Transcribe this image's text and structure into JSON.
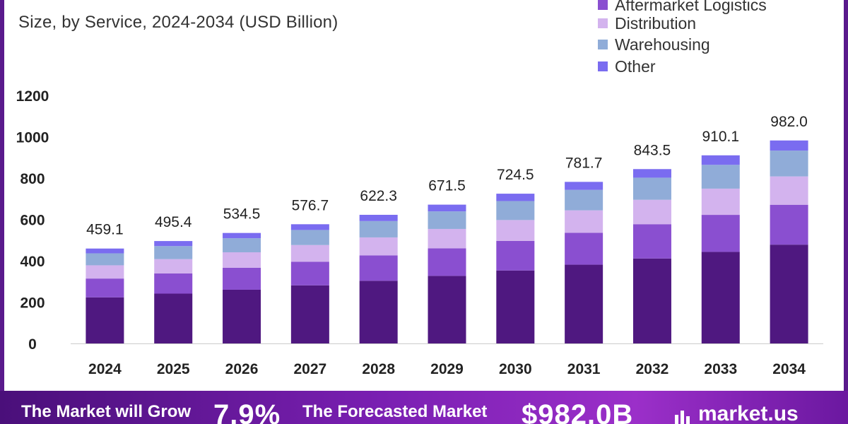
{
  "header": {
    "title": "",
    "subtitle": "Size, by Service, 2024-2034 (USD Billion)"
  },
  "legend": [
    {
      "label": "Aftermarket Logistics",
      "color": "#8a4fd0"
    },
    {
      "label": "Distribution",
      "color": "#d3b3ee"
    },
    {
      "label": "Warehousing",
      "color": "#90acd8"
    },
    {
      "label": "Other",
      "color": "#7a6cf0"
    }
  ],
  "chart_data": {
    "type": "bar",
    "stacked": true,
    "categories": [
      "2024",
      "2025",
      "2026",
      "2027",
      "2028",
      "2029",
      "2030",
      "2031",
      "2032",
      "2033",
      "2034"
    ],
    "totals": [
      459.1,
      495.4,
      534.5,
      576.7,
      622.3,
      671.5,
      724.5,
      781.7,
      843.5,
      910.1,
      982.0
    ],
    "total_labels": [
      "459.1",
      "495.4",
      "534.5",
      "576.7",
      "622.3",
      "671.5",
      "724.5",
      "781.7",
      "843.5",
      "910.1",
      "982.0"
    ],
    "series": [
      {
        "values": [
          223,
          241,
          260,
          281,
          303,
          327,
          353,
          381,
          411,
          443,
          478
        ],
        "color": "#4f1880"
      },
      {
        "name": "Aftermarket Logistics",
        "values": [
          91,
          98,
          106,
          114,
          123,
          133,
          143,
          154,
          166,
          179,
          193
        ],
        "color": "#8a4fd0"
      },
      {
        "name": "Distribution",
        "values": [
          64,
          69,
          75,
          81,
          87,
          94,
          101,
          109,
          118,
          127,
          137
        ],
        "color": "#d3b3ee"
      },
      {
        "name": "Warehousing",
        "values": [
          58,
          63,
          68,
          73,
          79,
          85,
          92,
          99,
          107,
          115,
          125
        ],
        "color": "#90acd8"
      },
      {
        "name": "Other",
        "values": [
          23.1,
          24.4,
          25.5,
          27.7,
          30.3,
          32.5,
          35.5,
          38.7,
          41.5,
          46.1,
          49.0
        ],
        "color": "#7a6cf0"
      }
    ],
    "ylim": [
      0,
      1200
    ],
    "yticks": [
      "0",
      "200",
      "400",
      "600",
      "800",
      "1000",
      "1200"
    ],
    "grid": false
  },
  "footer": {
    "grow_label": "The Market will Grow",
    "cagr": "7.9%",
    "forecast_label": "The Forecasted Market",
    "forecast_value": "$982.0B",
    "brand": "market.us"
  },
  "colors": {
    "footer_start": "#4a0f7a",
    "footer_end": "#9b2fc9"
  }
}
